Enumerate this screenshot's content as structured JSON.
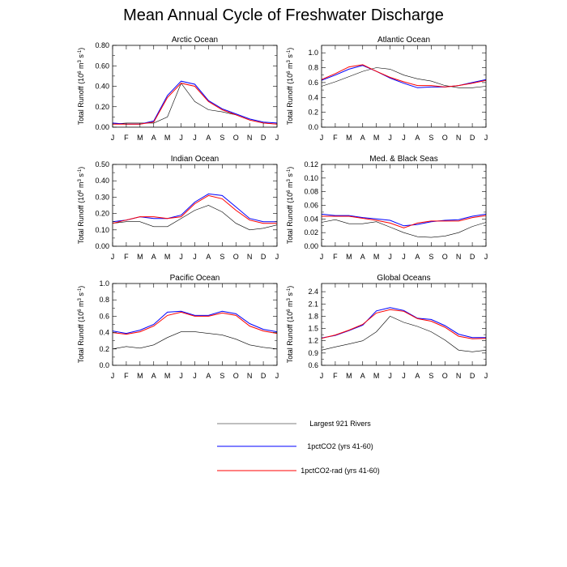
{
  "title": "Mean Annual Cycle of Freshwater Discharge",
  "ylabel_parts": {
    "main": "Total Runoff (10",
    "exp1": "6",
    "mid": " m",
    "exp2": "3",
    "mid2": " s",
    "exp3": "-1",
    "end": ")"
  },
  "legend": {
    "entries": [
      {
        "label": "Largest 921 Rivers",
        "color": "#000000"
      },
      {
        "label": "1pctCO2 (yrs 41-60)",
        "color": "#0000ff"
      },
      {
        "label": "1pctCO2-rad (yrs 41-60)",
        "color": "#ff0000"
      }
    ]
  },
  "chart_data": [
    {
      "type": "line",
      "title": "Arctic Ocean",
      "x": [
        "J",
        "F",
        "M",
        "A",
        "M",
        "J",
        "J",
        "A",
        "S",
        "O",
        "N",
        "D",
        "J"
      ],
      "ylim": [
        0,
        0.8
      ],
      "yticks": [
        0.0,
        0.2,
        0.4,
        0.6,
        0.8
      ],
      "ytick_labels": [
        "0.00",
        "0.20",
        "0.40",
        "0.60",
        "0.80"
      ],
      "series": [
        {
          "name": "Largest 921 Rivers",
          "color": "#000000",
          "values": [
            0.03,
            0.04,
            0.04,
            0.04,
            0.1,
            0.43,
            0.25,
            0.17,
            0.15,
            0.12,
            0.07,
            0.04,
            0.03
          ]
        },
        {
          "name": "1pctCO2 (yrs 41-60)",
          "color": "#0000ff",
          "values": [
            0.04,
            0.03,
            0.03,
            0.06,
            0.31,
            0.45,
            0.42,
            0.26,
            0.18,
            0.13,
            0.08,
            0.05,
            0.04
          ]
        },
        {
          "name": "1pctCO2-rad (yrs 41-60)",
          "color": "#ff0000",
          "values": [
            0.03,
            0.03,
            0.03,
            0.05,
            0.29,
            0.43,
            0.4,
            0.25,
            0.17,
            0.12,
            0.07,
            0.04,
            0.03
          ]
        }
      ]
    },
    {
      "type": "line",
      "title": "Atlantic Ocean",
      "x": [
        "J",
        "F",
        "M",
        "A",
        "M",
        "J",
        "J",
        "A",
        "S",
        "O",
        "N",
        "D",
        "J"
      ],
      "ylim": [
        0,
        1.1
      ],
      "yticks": [
        0.0,
        0.2,
        0.4,
        0.6,
        0.8,
        1.0
      ],
      "ytick_labels": [
        "0.0",
        "0.2",
        "0.4",
        "0.6",
        "0.8",
        "1.0"
      ],
      "series": [
        {
          "name": "Largest 921 Rivers",
          "color": "#000000",
          "values": [
            0.55,
            0.61,
            0.68,
            0.75,
            0.8,
            0.78,
            0.7,
            0.65,
            0.62,
            0.56,
            0.53,
            0.53,
            0.55
          ]
        },
        {
          "name": "1pctCO2 (yrs 41-60)",
          "color": "#0000ff",
          "values": [
            0.63,
            0.7,
            0.78,
            0.83,
            0.75,
            0.66,
            0.59,
            0.53,
            0.54,
            0.54,
            0.56,
            0.6,
            0.64
          ]
        },
        {
          "name": "1pctCO2-rad (yrs 41-60)",
          "color": "#ff0000",
          "values": [
            0.64,
            0.72,
            0.81,
            0.84,
            0.75,
            0.67,
            0.61,
            0.56,
            0.56,
            0.54,
            0.56,
            0.59,
            0.63
          ]
        }
      ]
    },
    {
      "type": "line",
      "title": "Indian Ocean",
      "x": [
        "J",
        "F",
        "M",
        "A",
        "M",
        "J",
        "J",
        "A",
        "S",
        "O",
        "N",
        "D",
        "J"
      ],
      "ylim": [
        0,
        0.5
      ],
      "yticks": [
        0.0,
        0.1,
        0.2,
        0.3,
        0.4,
        0.5
      ],
      "ytick_labels": [
        "0.00",
        "0.10",
        "0.20",
        "0.30",
        "0.40",
        "0.50"
      ],
      "series": [
        {
          "name": "Largest 921 Rivers",
          "color": "#000000",
          "values": [
            0.14,
            0.15,
            0.15,
            0.12,
            0.12,
            0.17,
            0.22,
            0.25,
            0.21,
            0.14,
            0.1,
            0.11,
            0.13
          ]
        },
        {
          "name": "1pctCO2 (yrs 41-60)",
          "color": "#0000ff",
          "values": [
            0.15,
            0.16,
            0.18,
            0.17,
            0.17,
            0.19,
            0.27,
            0.32,
            0.31,
            0.24,
            0.17,
            0.15,
            0.15
          ]
        },
        {
          "name": "1pctCO2-rad (yrs 41-60)",
          "color": "#ff0000",
          "values": [
            0.14,
            0.16,
            0.18,
            0.18,
            0.17,
            0.18,
            0.26,
            0.31,
            0.29,
            0.22,
            0.16,
            0.14,
            0.14
          ]
        }
      ]
    },
    {
      "type": "line",
      "title": "Med. & Black Seas",
      "x": [
        "J",
        "F",
        "M",
        "A",
        "M",
        "J",
        "J",
        "A",
        "S",
        "O",
        "N",
        "D",
        "J"
      ],
      "ylim": [
        0,
        0.12
      ],
      "yticks": [
        0.0,
        0.02,
        0.04,
        0.06,
        0.08,
        0.1,
        0.12
      ],
      "ytick_labels": [
        "0.00",
        "0.02",
        "0.04",
        "0.06",
        "0.08",
        "0.10",
        "0.12"
      ],
      "series": [
        {
          "name": "Largest 921 Rivers",
          "color": "#000000",
          "values": [
            0.035,
            0.039,
            0.033,
            0.033,
            0.036,
            0.028,
            0.02,
            0.014,
            0.013,
            0.015,
            0.02,
            0.029,
            0.035
          ]
        },
        {
          "name": "1pctCO2 (yrs 41-60)",
          "color": "#0000ff",
          "values": [
            0.047,
            0.045,
            0.045,
            0.042,
            0.04,
            0.038,
            0.03,
            0.032,
            0.036,
            0.038,
            0.039,
            0.044,
            0.047
          ]
        },
        {
          "name": "1pctCO2-rad (yrs 41-60)",
          "color": "#ff0000",
          "values": [
            0.044,
            0.044,
            0.044,
            0.041,
            0.038,
            0.034,
            0.027,
            0.034,
            0.037,
            0.037,
            0.037,
            0.042,
            0.045
          ]
        }
      ]
    },
    {
      "type": "line",
      "title": "Pacific Ocean",
      "x": [
        "J",
        "F",
        "M",
        "A",
        "M",
        "J",
        "J",
        "A",
        "S",
        "O",
        "N",
        "D",
        "J"
      ],
      "ylim": [
        0,
        1.0
      ],
      "yticks": [
        0.0,
        0.2,
        0.4,
        0.6,
        0.8,
        1.0
      ],
      "ytick_labels": [
        "0.0",
        "0.2",
        "0.4",
        "0.6",
        "0.8",
        "1.0"
      ],
      "series": [
        {
          "name": "Largest 921 Rivers",
          "color": "#000000",
          "values": [
            0.2,
            0.23,
            0.21,
            0.25,
            0.34,
            0.41,
            0.41,
            0.39,
            0.37,
            0.32,
            0.25,
            0.22,
            0.2
          ]
        },
        {
          "name": "1pctCO2 (yrs 41-60)",
          "color": "#0000ff",
          "values": [
            0.42,
            0.39,
            0.43,
            0.5,
            0.65,
            0.66,
            0.61,
            0.61,
            0.66,
            0.63,
            0.51,
            0.44,
            0.41
          ]
        },
        {
          "name": "1pctCO2-rad (yrs 41-60)",
          "color": "#ff0000",
          "values": [
            0.4,
            0.38,
            0.41,
            0.48,
            0.61,
            0.65,
            0.6,
            0.6,
            0.64,
            0.61,
            0.48,
            0.42,
            0.39
          ]
        }
      ]
    },
    {
      "type": "line",
      "title": "Global Oceans",
      "x": [
        "J",
        "F",
        "M",
        "A",
        "M",
        "J",
        "J",
        "A",
        "S",
        "O",
        "N",
        "D",
        "J"
      ],
      "ylim": [
        0.6,
        2.6
      ],
      "yticks": [
        0.6,
        0.9,
        1.2,
        1.5,
        1.8,
        2.1,
        2.4
      ],
      "ytick_labels": [
        "0.6",
        "0.9",
        "1.2",
        "1.5",
        "1.8",
        "2.1",
        "2.4"
      ],
      "series": [
        {
          "name": "Largest 921 Rivers",
          "color": "#000000",
          "values": [
            0.97,
            1.05,
            1.12,
            1.2,
            1.42,
            1.8,
            1.65,
            1.55,
            1.42,
            1.22,
            0.97,
            0.93,
            0.97
          ]
        },
        {
          "name": "1pctCO2 (yrs 41-60)",
          "color": "#0000ff",
          "values": [
            1.27,
            1.33,
            1.45,
            1.58,
            1.93,
            2.01,
            1.94,
            1.75,
            1.72,
            1.57,
            1.36,
            1.28,
            1.28
          ]
        },
        {
          "name": "1pctCO2-rad (yrs 41-60)",
          "color": "#ff0000",
          "values": [
            1.26,
            1.34,
            1.46,
            1.6,
            1.88,
            1.96,
            1.92,
            1.74,
            1.68,
            1.53,
            1.31,
            1.25,
            1.26
          ]
        }
      ]
    }
  ]
}
